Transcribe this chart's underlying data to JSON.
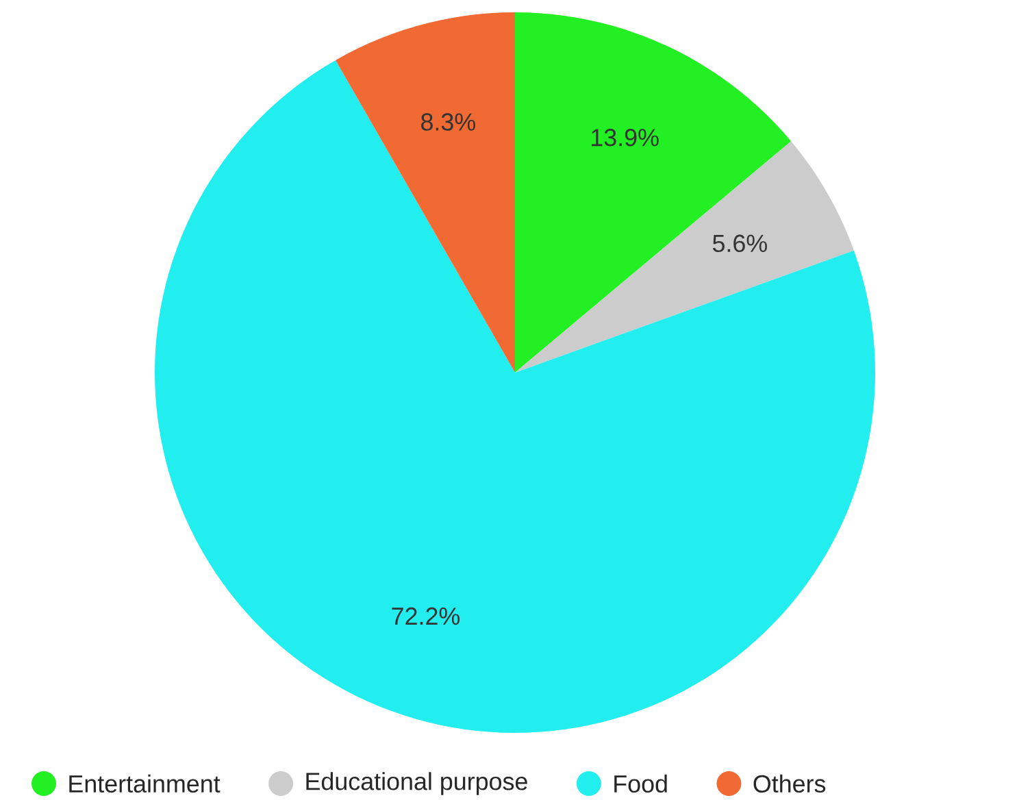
{
  "chart_data": {
    "type": "pie",
    "categories": [
      "Entertainment",
      "Educational purpose",
      "Food",
      "Others"
    ],
    "values": [
      13.9,
      5.6,
      72.2,
      8.3
    ],
    "colors": [
      "#22f022",
      "#cccccc",
      "#22eef0",
      "#f26a33"
    ],
    "value_labels": [
      "13.9%",
      "5.6%",
      "72.2%",
      "8.3%"
    ],
    "legend": "bottom"
  }
}
